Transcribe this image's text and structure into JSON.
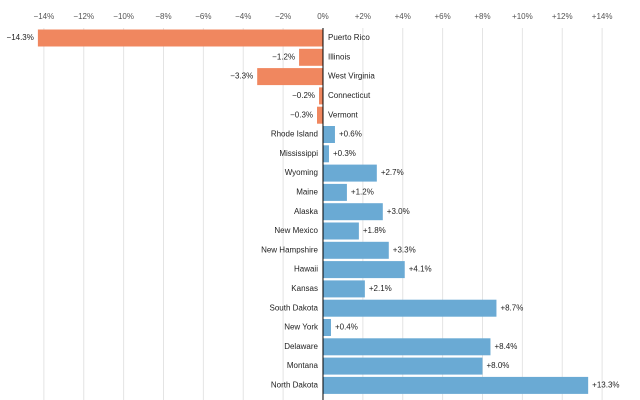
{
  "chart_data": {
    "type": "diverging-bar",
    "categories": [
      "Puerto Rico",
      "Illinois",
      "West Virginia",
      "Connecticut",
      "Vermont",
      "Rhode Island",
      "Mississippi",
      "Wyoming",
      "Maine",
      "Alaska",
      "New Mexico",
      "New Hampshire",
      "Hawaii",
      "Kansas",
      "South Dakota",
      "New York",
      "Delaware",
      "Montana",
      "North Dakota"
    ],
    "values": [
      -14.3,
      -1.2,
      -3.3,
      -0.2,
      -0.3,
      0.6,
      0.3,
      2.7,
      1.2,
      3.0,
      1.8,
      3.3,
      4.1,
      2.1,
      8.7,
      0.4,
      8.4,
      8.0,
      13.3
    ],
    "value_labels": [
      "−14.3%",
      "−1.2%",
      "−3.3%",
      "−0.2%",
      "−0.3%",
      "+0.6%",
      "+0.3%",
      "+2.7%",
      "+1.2%",
      "+3.0%",
      "+1.8%",
      "+3.3%",
      "+4.1%",
      "+2.1%",
      "+8.7%",
      "+0.4%",
      "+8.4%",
      "+8.0%",
      "+13.3%"
    ],
    "negative_color": "#f0875f",
    "positive_color": "#6aaad4",
    "xlim": [
      -16.2,
      15.9
    ],
    "xticks": [
      {
        "value": -14,
        "label": "−14%"
      },
      {
        "value": -12,
        "label": "−12%"
      },
      {
        "value": -10,
        "label": "−10%"
      },
      {
        "value": -8,
        "label": "−8%"
      },
      {
        "value": -6,
        "label": "−6%"
      },
      {
        "value": -4,
        "label": "−4%"
      },
      {
        "value": -2,
        "label": "−2%"
      },
      {
        "value": 0,
        "label": "0%"
      },
      {
        "value": 2,
        "label": "+2%"
      },
      {
        "value": 4,
        "label": "+4%"
      },
      {
        "value": 6,
        "label": "+6%"
      },
      {
        "value": 8,
        "label": "+8%"
      },
      {
        "value": 10,
        "label": "+10%"
      },
      {
        "value": 12,
        "label": "+12%"
      },
      {
        "value": 14,
        "label": "+14%"
      }
    ],
    "grid": true
  }
}
